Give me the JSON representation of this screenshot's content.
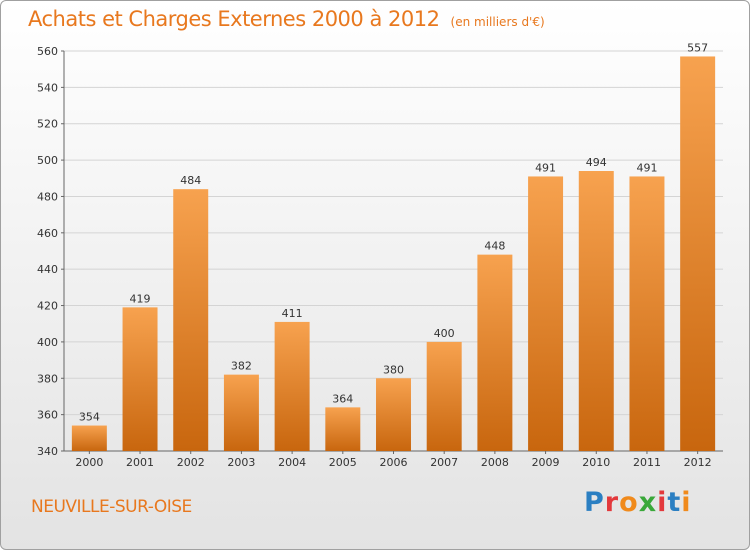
{
  "header": {
    "title": "Achats et Charges Externes 2000 à 2012",
    "unit": "(en milliers d'€)"
  },
  "footer": {
    "commune": "NEUVILLE-SUR-OISE",
    "logo": "Proxiti",
    "logo_colors": [
      "#2b7fc2",
      "#e3393c",
      "#f08a1c",
      "#3aa83a",
      "#e3393c",
      "#2b7fc2",
      "#f08a1c"
    ]
  },
  "chart_data": {
    "type": "bar",
    "title": "Achats et Charges Externes 2000 à 2012",
    "subtitle": "(en milliers d'€)",
    "categories": [
      "2000",
      "2001",
      "2002",
      "2003",
      "2004",
      "2005",
      "2006",
      "2007",
      "2008",
      "2009",
      "2010",
      "2011",
      "2012"
    ],
    "values": [
      354,
      419,
      484,
      382,
      411,
      364,
      380,
      400,
      448,
      491,
      494,
      491,
      557
    ],
    "ylim": [
      340,
      560
    ],
    "yticks": [
      340,
      360,
      380,
      400,
      420,
      440,
      460,
      480,
      500,
      520,
      540,
      560
    ],
    "grid": true,
    "bar_color_top": "#f7a24f",
    "bar_color_bottom": "#c8660e"
  }
}
